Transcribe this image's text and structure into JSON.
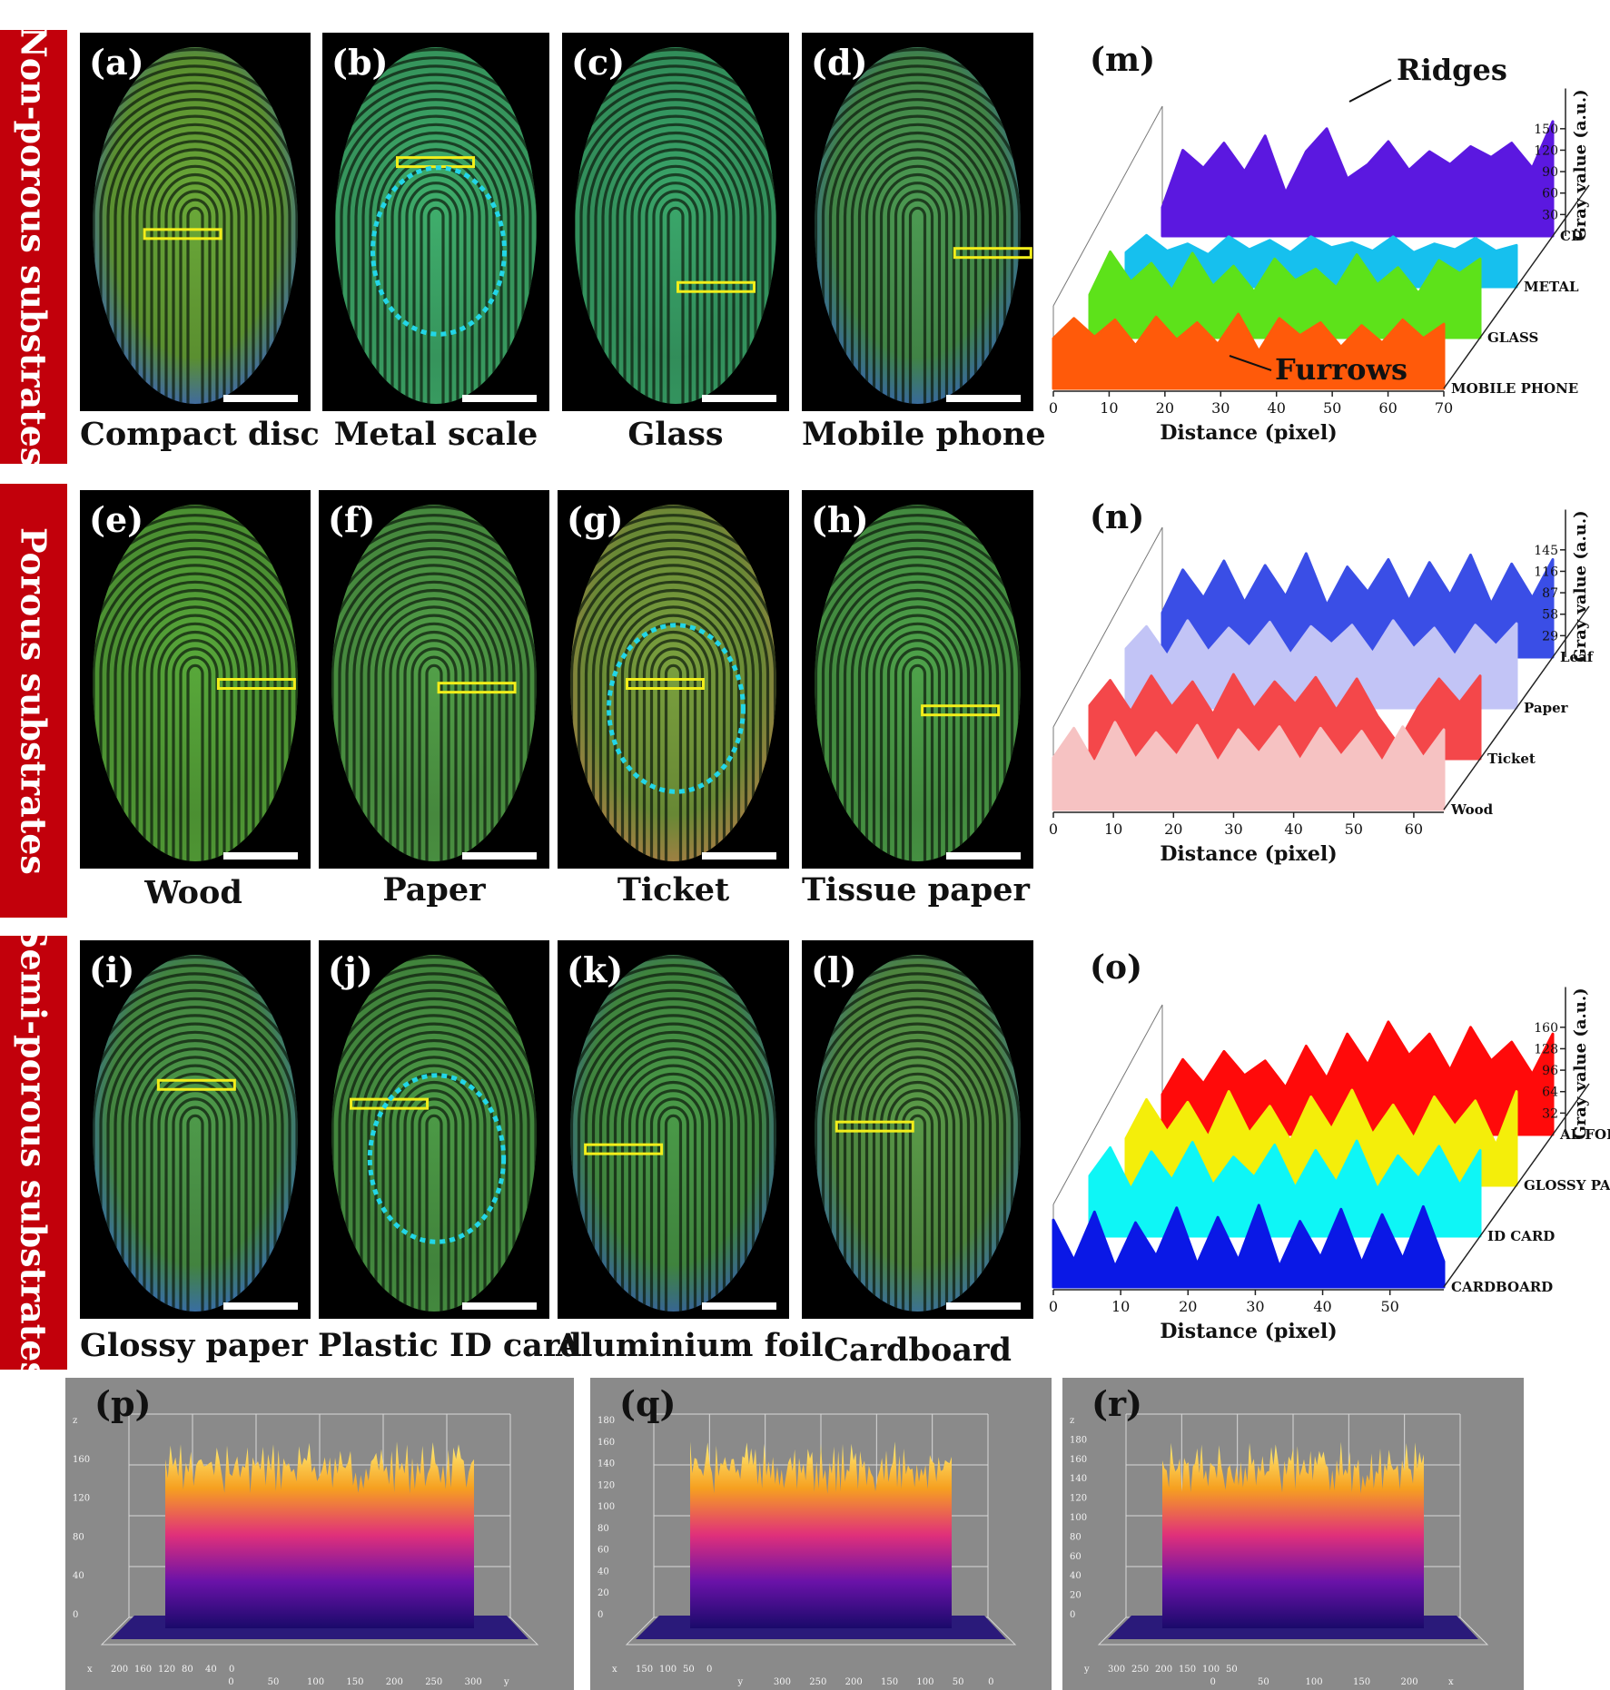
{
  "rows": [
    {
      "side_label": "Non-porous substrates",
      "panels": [
        {
          "label": "(a)",
          "caption": "Compact disc",
          "tint": "#6aa838",
          "accent": "#3c66e0",
          "circle": false
        },
        {
          "label": "(b)",
          "caption": "Metal scale",
          "tint": "#3fae6c",
          "accent": "#3fae6c",
          "circle": true
        },
        {
          "label": "(c)",
          "caption": "Glass",
          "tint": "#3aa66a",
          "accent": "#3aa66a",
          "circle": false
        },
        {
          "label": "(d)",
          "caption": "Mobile phone",
          "tint": "#4c9a52",
          "accent": "#3a6ad0",
          "circle": false
        }
      ]
    },
    {
      "side_label": "Porous substrates",
      "panels": [
        {
          "label": "(e)",
          "caption": "Wood",
          "tint": "#58a83a",
          "accent": "#58a83a",
          "circle": false
        },
        {
          "label": "(f)",
          "caption": "Paper",
          "tint": "#52a048",
          "accent": "#52a048",
          "circle": false
        },
        {
          "label": "(g)",
          "caption": "Ticket",
          "tint": "#7aa03e",
          "accent": "#c88a50",
          "circle": true
        },
        {
          "label": "(h)",
          "caption": "Tissue paper",
          "tint": "#4ea24a",
          "accent": "#4ea24a",
          "circle": false
        }
      ]
    },
    {
      "side_label": "Semi-porous substrates",
      "panels": [
        {
          "label": "(i)",
          "caption": "Glossy paper",
          "tint": "#4e9a4a",
          "accent": "#3a70e0",
          "circle": false
        },
        {
          "label": "(j)",
          "caption": "Plastic ID card",
          "tint": "#4c9a46",
          "accent": "#4c9a46",
          "circle": true
        },
        {
          "label": "(k)",
          "caption": "Aluminium foil",
          "tint": "#4a9a48",
          "accent": "#3a64c8",
          "circle": false
        },
        {
          "label": "(l)",
          "caption": "Cardboard",
          "tint": "#5a9a48",
          "accent": "#3a76c8",
          "circle": false
        }
      ]
    }
  ],
  "chart_data": [
    {
      "type": "area",
      "panel_label": "(m)",
      "xlabel": "Distance (pixel)",
      "ylabel": "Gray value (a.u.)",
      "xlim": [
        0,
        70
      ],
      "x_ticks": [
        0,
        10,
        20,
        30,
        40,
        50,
        60,
        70
      ],
      "y_ticks": [
        30,
        60,
        90,
        120,
        150
      ],
      "annotations": [
        "Ridges",
        "Furrows"
      ],
      "series": [
        {
          "name": "CD",
          "color": "#5b18e0",
          "values": [
            40,
            120,
            95,
            130,
            90,
            140,
            60,
            118,
            150,
            80,
            100,
            132,
            92,
            118,
            100,
            125,
            110,
            130,
            95,
            160
          ]
        },
        {
          "name": "METAL",
          "color": "#16c0ee",
          "values": [
            48,
            72,
            50,
            60,
            45,
            70,
            52,
            65,
            48,
            70,
            55,
            62,
            50,
            70,
            48,
            60,
            52,
            68,
            50,
            58
          ]
        },
        {
          "name": "GLASS",
          "color": "#5de21a",
          "values": [
            60,
            120,
            78,
            104,
            66,
            118,
            72,
            100,
            64,
            110,
            80,
            96,
            70,
            116,
            74,
            98,
            62,
            108,
            90,
            110
          ]
        },
        {
          "name": "MOBILE PHONE",
          "color": "#ff5a0a",
          "values": [
            70,
            98,
            72,
            96,
            60,
            100,
            68,
            92,
            62,
            104,
            52,
            98,
            74,
            92,
            58,
            88,
            64,
            96,
            70,
            90
          ]
        }
      ]
    },
    {
      "type": "area",
      "panel_label": "(n)",
      "xlabel": "Distance (pixel)",
      "ylabel": "Gray value (a.u.)",
      "xlim": [
        0,
        65
      ],
      "x_ticks": [
        0,
        10,
        20,
        30,
        40,
        50,
        60
      ],
      "y_ticks": [
        29,
        58,
        87,
        116,
        145
      ],
      "series": [
        {
          "name": "Leaf",
          "color": "#3a4ee6",
          "values": [
            60,
            118,
            80,
            130,
            74,
            124,
            82,
            140,
            70,
            122,
            88,
            132,
            76,
            128,
            84,
            138,
            72,
            126,
            80,
            132
          ]
        },
        {
          "name": "Paper",
          "color": "#c2c4f6",
          "values": [
            80,
            110,
            70,
            118,
            76,
            108,
            82,
            116,
            72,
            110,
            86,
            112,
            74,
            118,
            80,
            108,
            70,
            112,
            84,
            114
          ]
        },
        {
          "name": "Ticket",
          "color": "#f4474a",
          "values": [
            72,
            106,
            64,
            112,
            70,
            104,
            60,
            114,
            68,
            104,
            74,
            110,
            66,
            108,
            58,
            20,
            70,
            108,
            76,
            112
          ]
        },
        {
          "name": "Wood",
          "color": "#f6c2c2",
          "values": [
            70,
            110,
            62,
            118,
            68,
            104,
            72,
            114,
            64,
            108,
            76,
            112,
            66,
            110,
            72,
            106,
            64,
            112,
            70,
            108
          ]
        }
      ]
    },
    {
      "type": "area",
      "panel_label": "(o)",
      "xlabel": "Distance (pixel)",
      "ylabel": "Gray value (a.u.)",
      "xlim": [
        0,
        58
      ],
      "x_ticks": [
        0,
        10,
        20,
        30,
        40,
        50
      ],
      "y_ticks": [
        32,
        64,
        96,
        128,
        160
      ],
      "series": [
        {
          "name": "AL FOIL",
          "color": "#ff0a0a",
          "values": [
            60,
            112,
            76,
            124,
            88,
            110,
            70,
            132,
            84,
            150,
            104,
            168,
            118,
            150,
            96,
            160,
            110,
            138,
            90,
            150
          ]
        },
        {
          "name": "GLOSSY PAPER",
          "color": "#f4ee0a",
          "values": [
            70,
            128,
            80,
            124,
            72,
            140,
            78,
            118,
            66,
            132,
            84,
            142,
            76,
            120,
            70,
            132,
            88,
            126,
            60,
            140
          ]
        },
        {
          "name": "ID CARD",
          "color": "#0ef6f6",
          "values": [
            90,
            132,
            70,
            126,
            84,
            140,
            76,
            118,
            88,
            136,
            72,
            128,
            80,
            142,
            70,
            120,
            86,
            134,
            76,
            128
          ]
        },
        {
          "name": "CARDBOARD",
          "color": "#0a18e6",
          "values": [
            100,
            40,
            112,
            30,
            96,
            46,
            118,
            34,
            104,
            40,
            122,
            30,
            98,
            44,
            116,
            36,
            108,
            42,
            120,
            38
          ]
        }
      ]
    }
  ],
  "surface_plots": [
    {
      "label": "(p)",
      "z_ticks": [
        "z",
        "160",
        "120",
        "80",
        "40",
        "0"
      ],
      "x_ticks": [
        "x",
        "200",
        "160",
        "120",
        "80",
        "40",
        "0"
      ],
      "y_ticks": [
        "0",
        "50",
        "100",
        "150",
        "200",
        "250",
        "300",
        "y"
      ]
    },
    {
      "label": "(q)",
      "z_ticks": [
        "180",
        "160",
        "140",
        "120",
        "100",
        "80",
        "60",
        "40",
        "20",
        "0"
      ],
      "x_ticks": [
        "x",
        "150",
        "100",
        "50",
        "0"
      ],
      "y_ticks": [
        "y",
        "300",
        "250",
        "200",
        "150",
        "100",
        "50",
        "0"
      ]
    },
    {
      "label": "(r)",
      "z_ticks": [
        "z",
        "180",
        "160",
        "140",
        "120",
        "100",
        "80",
        "60",
        "40",
        "20",
        "0"
      ],
      "x_ticks": [
        "y",
        "300",
        "250",
        "200",
        "150",
        "100",
        "50"
      ],
      "y_ticks": [
        "0",
        "50",
        "100",
        "150",
        "200",
        "x"
      ]
    }
  ]
}
